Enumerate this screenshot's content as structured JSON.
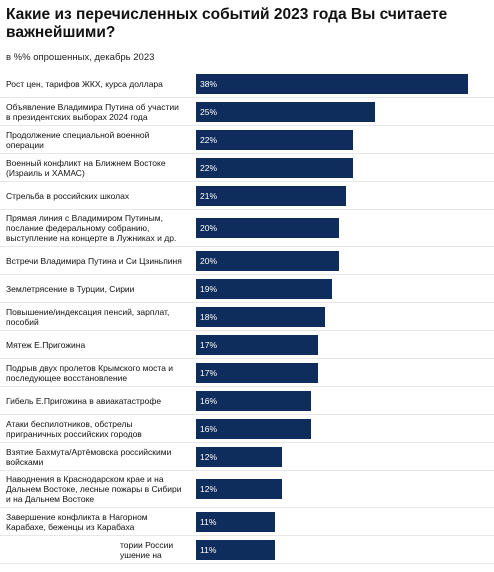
{
  "chart_data": {
    "type": "bar",
    "orientation": "horizontal",
    "title": "Какие из перечисленных событий 2023 года Вы считаете важнейшими?",
    "subtitle": "в %% опрошенных, декабрь 2023",
    "color": "#0f2d5c",
    "categories": [
      "Рост цен, тарифов ЖКХ, курса доллара",
      "Объявление Владимира Путина об участии\nв президентских выборах 2024 года",
      "Продолжение специальной военной\nоперации",
      "Военный конфликт на Ближнем Востоке\n(Израиль и ХАМАС)",
      "Стрельба в российских школах",
      "Прямая линия с Владимиром Путиным,\nпослание федеральному собранию,\nвыступление на концерте в Лужниках и др.",
      "Встречи Владимира Путина и Си Цзиньпиня",
      "Землетрясение в Турции, Сирии",
      "Повышение/индексация пенсий, зарплат,\nпособий",
      "Мятеж Е.Пригожина",
      "Подрыв двух пролетов Крымского моста и\nпоследующее восстановление",
      "Гибель Е.Пригожина в авиакатастрофе",
      "Атаки беспилотников, обстрелы\nприграничных российских городов",
      "Взятие Бахмута/Артёмовска российскими\nвойсками",
      "Наводнения в Краснодарском крае и на\nДальнем Востоке, лесные пожары в Сибири\nи на Дальнем Востоке",
      "Завершение конфликта в Нагорном\nКарабахе, беженцы из Карабаха",
      "тории России\nушение на"
    ],
    "values": [
      38,
      25,
      22,
      22,
      21,
      20,
      20,
      19,
      18,
      17,
      17,
      16,
      16,
      12,
      12,
      11,
      11
    ],
    "value_labels": [
      "38%",
      "25%",
      "22%",
      "22%",
      "21%",
      "20%",
      "20%",
      "19%",
      "18%",
      "17%",
      "17%",
      "16%",
      "16%",
      "12%",
      "12%",
      "11%",
      "11%"
    ]
  }
}
